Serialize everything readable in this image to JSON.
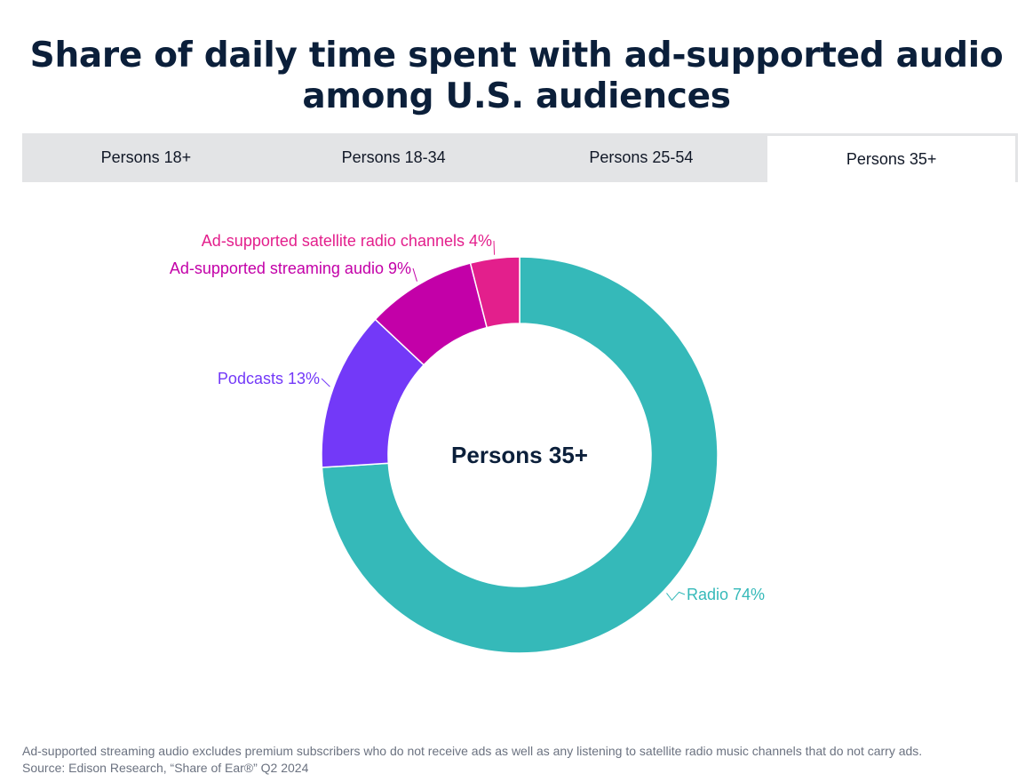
{
  "title": "Share of daily time spent with ad-supported audio among U.S. audiences",
  "tabs": [
    {
      "label": "Persons 18+",
      "active": false
    },
    {
      "label": "Persons 18-34",
      "active": false
    },
    {
      "label": "Persons 25-54",
      "active": false
    },
    {
      "label": "Persons 35+",
      "active": true
    }
  ],
  "chart_data": {
    "type": "pie",
    "variant": "donut",
    "center_label": "Persons 35+",
    "slices": [
      {
        "label": "Radio",
        "value": 74,
        "display": "Radio 74%",
        "color": "#35b9b9"
      },
      {
        "label": "Podcasts",
        "value": 13,
        "display": "Podcasts 13%",
        "color": "#7339f8"
      },
      {
        "label": "Ad-supported streaming audio",
        "value": 9,
        "display": "Ad-supported streaming audio 9%",
        "color": "#c300a8"
      },
      {
        "label": "Ad-supported satellite radio channels",
        "value": 4,
        "display": "Ad-supported satellite radio channels 4%",
        "color": "#e31f8c"
      }
    ]
  },
  "footnote": {
    "line1": "Ad-supported streaming audio excludes premium subscribers who do not receive ads as well as any listening to satellite radio music channels that do not carry ads.",
    "line2": "Source: Edison Research, “Share of Ear®” Q2 2024"
  }
}
